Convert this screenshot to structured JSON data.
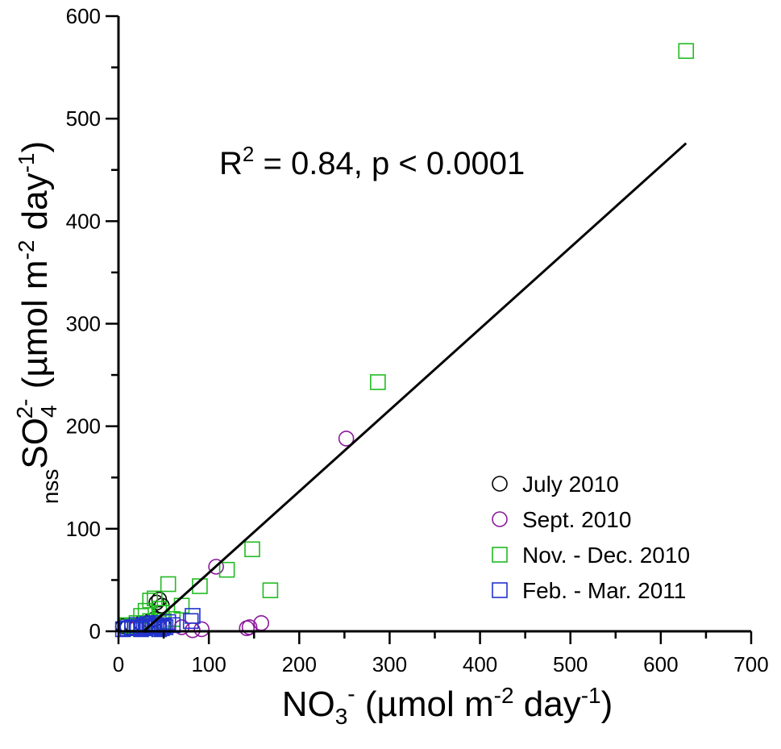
{
  "chart_data": {
    "type": "scatter",
    "xlabel": {
      "base": "NO",
      "sub": "3",
      "sup": "-",
      "units_pre": "(µmol m",
      "units_sup1": "-2",
      "units_mid": "day",
      "units_sup2": "-1",
      "units_post": ")"
    },
    "ylabel": {
      "pre_sub": "nss",
      "base": "SO",
      "sub": "4",
      "sup": "2-",
      "units_pre": "(µmol m",
      "units_sup1": "-2",
      "units_mid": "day",
      "units_sup2": "-1",
      "units_post": ")"
    },
    "xlim": [
      0,
      700
    ],
    "ylim": [
      0,
      600
    ],
    "xticks": [
      "0",
      "100",
      "200",
      "300",
      "400",
      "500",
      "600",
      "700"
    ],
    "yticks": [
      "0",
      "100",
      "200",
      "300",
      "400",
      "500",
      "600"
    ],
    "annotation": {
      "pre": "R",
      "sup": "2",
      "post": " = 0.84, p < 0.0001"
    },
    "fit_line": {
      "x": [
        28,
        628
      ],
      "y": [
        0,
        476
      ]
    },
    "legend_position": "lower-right",
    "series": [
      {
        "name": "July 2010",
        "marker": "circle",
        "color": "#000000",
        "points": [
          [
            5,
            5
          ],
          [
            10,
            4
          ],
          [
            15,
            6
          ],
          [
            20,
            5
          ],
          [
            25,
            8
          ],
          [
            30,
            6
          ],
          [
            35,
            10
          ],
          [
            40,
            12
          ],
          [
            42,
            28
          ],
          [
            45,
            31
          ],
          [
            48,
            25
          ],
          [
            50,
            5
          ]
        ]
      },
      {
        "name": "Sept. 2010",
        "marker": "circle",
        "color": "#8b1a9b",
        "points": [
          [
            252,
            188
          ],
          [
            108,
            63
          ],
          [
            158,
            8
          ],
          [
            145,
            4
          ],
          [
            142,
            3
          ],
          [
            92,
            2
          ],
          [
            82,
            1
          ],
          [
            70,
            4
          ],
          [
            45,
            3
          ],
          [
            38,
            6
          ],
          [
            30,
            5
          ],
          [
            20,
            3
          ]
        ]
      },
      {
        "name": "Nov. - Dec. 2010",
        "marker": "square",
        "color": "#22bb22",
        "points": [
          [
            628,
            566
          ],
          [
            287,
            243
          ],
          [
            148,
            80
          ],
          [
            120,
            60
          ],
          [
            168,
            40
          ],
          [
            90,
            44
          ],
          [
            55,
            46
          ],
          [
            35,
            30
          ],
          [
            40,
            32
          ],
          [
            30,
            20
          ],
          [
            45,
            22
          ],
          [
            25,
            15
          ],
          [
            50,
            10
          ],
          [
            20,
            8
          ],
          [
            10,
            6
          ],
          [
            60,
            12
          ],
          [
            70,
            25
          ],
          [
            35,
            10
          ],
          [
            15,
            5
          ],
          [
            48,
            18
          ]
        ]
      },
      {
        "name": "Feb. - Mar. 2011",
        "marker": "square",
        "color": "#2233cc",
        "points": [
          [
            82,
            15
          ],
          [
            80,
            10
          ],
          [
            60,
            6
          ],
          [
            52,
            4
          ],
          [
            48,
            3
          ],
          [
            45,
            2
          ],
          [
            40,
            5
          ],
          [
            35,
            4
          ],
          [
            30,
            3
          ],
          [
            25,
            2
          ],
          [
            20,
            6
          ],
          [
            15,
            4
          ],
          [
            10,
            3
          ],
          [
            5,
            2
          ],
          [
            38,
            8
          ],
          [
            55,
            9
          ],
          [
            42,
            6
          ],
          [
            28,
            5
          ],
          [
            32,
            7
          ],
          [
            50,
            5
          ],
          [
            18,
            3
          ]
        ]
      }
    ]
  }
}
